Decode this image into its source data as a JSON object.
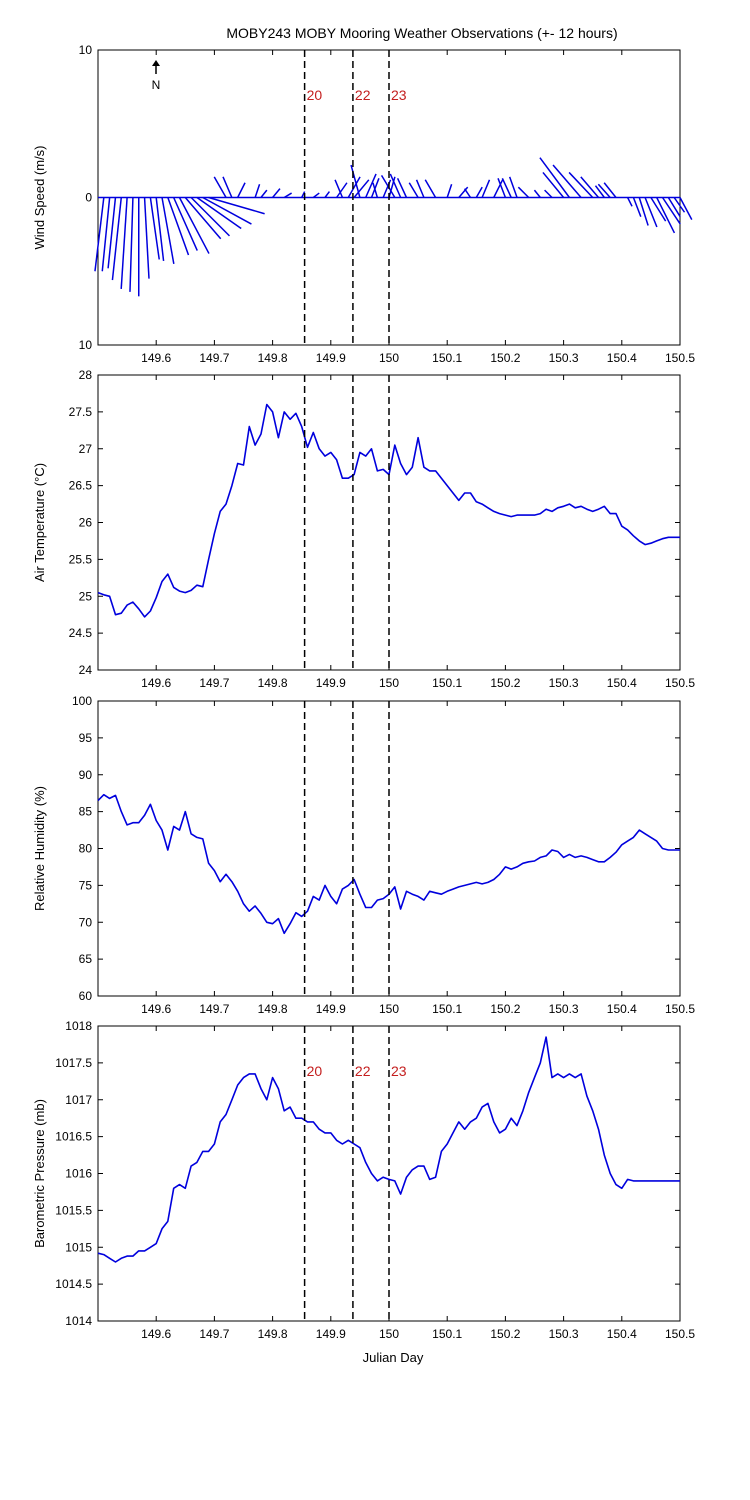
{
  "figure": {
    "title": "MOBY243 MOBY Mooring Weather Observations (+- 12 hours)",
    "north_label": "N",
    "xlabel": "Julian Day",
    "xlim": [
      149.5,
      150.5
    ],
    "xticks": [
      149.6,
      149.7,
      149.8,
      149.9,
      150,
      150.1,
      150.2,
      150.3,
      150.4,
      150.5
    ],
    "xtick_labels": [
      "149.6",
      "149.7",
      "149.8",
      "149.9",
      "150",
      "150.1",
      "150.2",
      "150.3",
      "150.4",
      "150.5"
    ],
    "line_color": "#0000dd",
    "marker_color": "#c41e1e",
    "vertical_markers": [
      {
        "label": "20",
        "x": 149.855
      },
      {
        "label": "22",
        "x": 149.938
      },
      {
        "label": "23",
        "x": 150.0
      }
    ]
  },
  "chart_data": [
    {
      "type": "line",
      "subtype": "wind-vector-stick",
      "ylabel": "Wind Speed (m/s)",
      "ylim": [
        -10,
        10
      ],
      "yticks": [
        -10,
        0,
        10
      ],
      "ytick_labels": [
        "10",
        "0",
        "10"
      ],
      "show_xtick_labels": true,
      "show_markers": true,
      "show_marker_labels": true,
      "series": [
        {
          "x": [
            149.51,
            149.52,
            149.53,
            149.54,
            149.55,
            149.56,
            149.57,
            149.58,
            149.59,
            149.6,
            149.61,
            149.62,
            149.63,
            149.64,
            149.65,
            149.66,
            149.67,
            149.68,
            149.69,
            149.72,
            149.73,
            149.74,
            149.77,
            149.78,
            149.8,
            149.82,
            149.85,
            149.87,
            149.89,
            149.91,
            149.92,
            149.93,
            149.94,
            149.95,
            149.96,
            149.97,
            149.98,
            149.99,
            150.0,
            150.01,
            150.02,
            150.03,
            150.05,
            150.06,
            150.08,
            150.1,
            150.12,
            150.14,
            150.15,
            150.16,
            150.18,
            150.2,
            150.21,
            150.22,
            150.24,
            150.26,
            150.28,
            150.3,
            150.31,
            150.33,
            150.35,
            150.36,
            150.37,
            150.38,
            150.39,
            150.41,
            150.42,
            150.43,
            150.44,
            150.45,
            150.46,
            150.47,
            150.48,
            150.49,
            150.5
          ],
          "u": [
            -0.6,
            -0.5,
            -0.5,
            -0.6,
            -0.4,
            -0.2,
            0.0,
            0.3,
            0.6,
            0.5,
            0.8,
            1.4,
            1.6,
            2.0,
            2.4,
            2.6,
            3.0,
            3.3,
            3.8,
            -0.8,
            -0.6,
            0.5,
            0.3,
            0.4,
            0.5,
            0.5,
            0.2,
            0.4,
            0.3,
            0.7,
            -0.5,
            0.8,
            1.0,
            -0.6,
            0.7,
            0.5,
            -0.3,
            0.5,
            0.4,
            -0.9,
            -0.7,
            -0.6,
            -0.6,
            -0.5,
            -0.7,
            0.3,
            0.6,
            -0.4,
            0.4,
            0.5,
            0.6,
            -0.5,
            -0.6,
            -0.5,
            -0.7,
            -0.4,
            -0.5,
            -1.4,
            -2.0,
            -1.9,
            -1.6,
            -1.2,
            -0.6,
            -0.8,
            -0.8,
            0.3,
            0.5,
            0.6,
            0.8,
            1.0,
            1.2,
            1.2,
            0.8,
            0.7,
            0.8
          ],
          "v": [
            -5.0,
            -5.0,
            -4.8,
            -5.6,
            -6.2,
            -6.4,
            -6.7,
            -5.5,
            -4.2,
            -4.3,
            -4.5,
            -3.9,
            -3.6,
            -3.8,
            -2.8,
            -2.6,
            -2.1,
            -1.8,
            -1.1,
            1.4,
            1.4,
            1.0,
            0.9,
            0.5,
            0.6,
            0.3,
            0.4,
            0.3,
            0.4,
            1.0,
            1.2,
            1.4,
            1.2,
            2.2,
            1.6,
            1.3,
            1.0,
            1.2,
            1.4,
            1.5,
            1.6,
            1.3,
            1.0,
            1.2,
            1.2,
            0.9,
            0.7,
            0.6,
            0.7,
            1.2,
            1.2,
            1.3,
            1.3,
            1.4,
            0.7,
            0.5,
            0.5,
            1.7,
            2.7,
            2.2,
            1.7,
            1.4,
            0.8,
            0.9,
            1.0,
            -0.6,
            -1.3,
            -1.9,
            -2.0,
            -1.6,
            -2.4,
            -1.8,
            -1.3,
            -1.0,
            -1.5
          ]
        }
      ]
    },
    {
      "type": "line",
      "ylabel": "Air Temperature (°C)",
      "ylim": [
        24,
        28
      ],
      "yticks": [
        24,
        24.5,
        25,
        25.5,
        26,
        26.5,
        27,
        27.5,
        28
      ],
      "ytick_labels": [
        "24",
        "24.5",
        "25",
        "25.5",
        "26",
        "26.5",
        "27",
        "27.5",
        "28"
      ],
      "show_xtick_labels": true,
      "show_markers": true,
      "show_marker_labels": false,
      "series": [
        {
          "x": [
            149.5,
            149.51,
            149.52,
            149.53,
            149.54,
            149.55,
            149.56,
            149.57,
            149.58,
            149.59,
            149.6,
            149.61,
            149.62,
            149.63,
            149.64,
            149.65,
            149.66,
            149.67,
            149.68,
            149.69,
            149.7,
            149.71,
            149.72,
            149.73,
            149.74,
            149.75,
            149.76,
            149.77,
            149.78,
            149.79,
            149.8,
            149.81,
            149.82,
            149.83,
            149.84,
            149.85,
            149.86,
            149.87,
            149.88,
            149.89,
            149.9,
            149.91,
            149.92,
            149.93,
            149.94,
            149.95,
            149.96,
            149.97,
            149.98,
            149.99,
            150.0,
            150.01,
            150.02,
            150.03,
            150.04,
            150.05,
            150.06,
            150.07,
            150.08,
            150.09,
            150.1,
            150.11,
            150.12,
            150.13,
            150.14,
            150.15,
            150.16,
            150.17,
            150.18,
            150.19,
            150.2,
            150.21,
            150.22,
            150.23,
            150.24,
            150.25,
            150.26,
            150.27,
            150.28,
            150.29,
            150.3,
            150.31,
            150.32,
            150.33,
            150.34,
            150.35,
            150.36,
            150.37,
            150.38,
            150.39,
            150.4,
            150.41,
            150.42,
            150.43,
            150.44,
            150.45,
            150.46,
            150.47,
            150.48,
            150.49,
            150.5
          ],
          "values": [
            25.05,
            25.02,
            25.0,
            24.75,
            24.77,
            24.88,
            24.92,
            24.83,
            24.72,
            24.8,
            24.98,
            25.2,
            25.3,
            25.12,
            25.07,
            25.05,
            25.08,
            25.15,
            25.13,
            25.5,
            25.85,
            26.15,
            26.25,
            26.5,
            26.8,
            26.78,
            27.3,
            27.05,
            27.2,
            27.6,
            27.5,
            27.15,
            27.5,
            27.4,
            27.48,
            27.3,
            27.02,
            27.22,
            27.0,
            26.9,
            26.95,
            26.85,
            26.6,
            26.6,
            26.65,
            26.95,
            26.9,
            27.0,
            26.7,
            26.72,
            26.65,
            27.05,
            26.8,
            26.65,
            26.75,
            27.15,
            26.75,
            26.7,
            26.7,
            26.6,
            26.5,
            26.4,
            26.3,
            26.4,
            26.4,
            26.28,
            26.25,
            26.2,
            26.15,
            26.12,
            26.1,
            26.08,
            26.1,
            26.1,
            26.1,
            26.1,
            26.12,
            26.18,
            26.15,
            26.2,
            26.22,
            26.25,
            26.2,
            26.22,
            26.18,
            26.15,
            26.18,
            26.22,
            26.12,
            26.12,
            25.95,
            25.9,
            25.82,
            25.75,
            25.7,
            25.72,
            25.75,
            25.78,
            25.8,
            25.8,
            25.8
          ]
        }
      ]
    },
    {
      "type": "line",
      "ylabel": "Relative Humidity (%)",
      "ylim": [
        60,
        100
      ],
      "yticks": [
        60,
        65,
        70,
        75,
        80,
        85,
        90,
        95,
        100
      ],
      "ytick_labels": [
        "60",
        "65",
        "70",
        "75",
        "80",
        "85",
        "90",
        "95",
        "100"
      ],
      "show_xtick_labels": true,
      "show_markers": true,
      "show_marker_labels": false,
      "series": [
        {
          "x": [
            149.5,
            149.51,
            149.52,
            149.53,
            149.54,
            149.55,
            149.56,
            149.57,
            149.58,
            149.59,
            149.6,
            149.61,
            149.62,
            149.63,
            149.64,
            149.65,
            149.66,
            149.67,
            149.68,
            149.69,
            149.7,
            149.71,
            149.72,
            149.73,
            149.74,
            149.75,
            149.76,
            149.77,
            149.78,
            149.79,
            149.8,
            149.81,
            149.82,
            149.83,
            149.84,
            149.85,
            149.86,
            149.87,
            149.88,
            149.89,
            149.9,
            149.91,
            149.92,
            149.93,
            149.94,
            149.95,
            149.96,
            149.97,
            149.98,
            149.99,
            150.0,
            150.01,
            150.02,
            150.03,
            150.04,
            150.05,
            150.06,
            150.07,
            150.08,
            150.09,
            150.1,
            150.11,
            150.12,
            150.13,
            150.14,
            150.15,
            150.16,
            150.17,
            150.18,
            150.19,
            150.2,
            150.21,
            150.22,
            150.23,
            150.24,
            150.25,
            150.26,
            150.27,
            150.28,
            150.29,
            150.3,
            150.31,
            150.32,
            150.33,
            150.34,
            150.35,
            150.36,
            150.37,
            150.38,
            150.39,
            150.4,
            150.41,
            150.42,
            150.43,
            150.44,
            150.45,
            150.46,
            150.47,
            150.48,
            150.49,
            150.5
          ],
          "values": [
            86.5,
            87.3,
            86.8,
            87.2,
            85.0,
            83.2,
            83.5,
            83.5,
            84.5,
            86.0,
            83.8,
            82.5,
            79.8,
            83.0,
            82.5,
            85.0,
            82.0,
            81.5,
            81.3,
            78.0,
            77.0,
            75.5,
            76.5,
            75.5,
            74.2,
            72.5,
            71.5,
            72.2,
            71.2,
            70.0,
            69.8,
            70.5,
            68.5,
            69.8,
            71.3,
            70.8,
            71.5,
            73.5,
            73.0,
            75.0,
            73.5,
            72.5,
            74.5,
            75.0,
            75.8,
            73.8,
            72.0,
            72.0,
            73.0,
            73.2,
            73.8,
            74.8,
            71.8,
            74.2,
            73.8,
            73.5,
            73.0,
            74.2,
            74.0,
            73.8,
            74.2,
            74.5,
            74.8,
            75.0,
            75.2,
            75.4,
            75.2,
            75.4,
            75.8,
            76.5,
            77.5,
            77.2,
            77.5,
            78.0,
            78.2,
            78.3,
            78.8,
            79.0,
            79.8,
            79.6,
            78.8,
            79.2,
            78.8,
            79.0,
            78.8,
            78.5,
            78.2,
            78.2,
            78.8,
            79.5,
            80.5,
            81.0,
            81.5,
            82.5,
            82.0,
            81.5,
            81.0,
            80.0,
            79.8,
            79.8,
            79.8
          ]
        }
      ]
    },
    {
      "type": "line",
      "ylabel": "Barometric Pressure (mb)",
      "ylim": [
        1014,
        1018
      ],
      "yticks": [
        1014,
        1014.5,
        1015,
        1015.5,
        1016,
        1016.5,
        1017,
        1017.5,
        1018
      ],
      "ytick_labels": [
        "1014",
        "1014.5",
        "1015",
        "1015.5",
        "1016",
        "1016.5",
        "1017",
        "1017.5",
        "1018"
      ],
      "show_xtick_labels": true,
      "show_markers": true,
      "show_marker_labels": true,
      "series": [
        {
          "x": [
            149.5,
            149.51,
            149.52,
            149.53,
            149.54,
            149.55,
            149.56,
            149.57,
            149.58,
            149.59,
            149.6,
            149.61,
            149.62,
            149.63,
            149.64,
            149.65,
            149.66,
            149.67,
            149.68,
            149.69,
            149.7,
            149.71,
            149.72,
            149.73,
            149.74,
            149.75,
            149.76,
            149.77,
            149.78,
            149.79,
            149.8,
            149.81,
            149.82,
            149.83,
            149.84,
            149.85,
            149.86,
            149.87,
            149.88,
            149.89,
            149.9,
            149.91,
            149.92,
            149.93,
            149.94,
            149.95,
            149.96,
            149.97,
            149.98,
            149.99,
            150.0,
            150.01,
            150.02,
            150.03,
            150.04,
            150.05,
            150.06,
            150.07,
            150.08,
            150.09,
            150.1,
            150.11,
            150.12,
            150.13,
            150.14,
            150.15,
            150.16,
            150.17,
            150.18,
            150.19,
            150.2,
            150.21,
            150.22,
            150.23,
            150.24,
            150.25,
            150.26,
            150.27,
            150.28,
            150.29,
            150.3,
            150.31,
            150.32,
            150.33,
            150.34,
            150.35,
            150.36,
            150.37,
            150.38,
            150.39,
            150.4,
            150.41,
            150.42,
            150.43,
            150.44,
            150.45,
            150.46,
            150.47,
            150.48,
            150.49,
            150.5
          ],
          "values": [
            1014.92,
            1014.9,
            1014.85,
            1014.8,
            1014.85,
            1014.88,
            1014.88,
            1014.95,
            1014.95,
            1015.0,
            1015.05,
            1015.25,
            1015.35,
            1015.8,
            1015.85,
            1015.8,
            1016.1,
            1016.15,
            1016.3,
            1016.3,
            1016.4,
            1016.7,
            1016.8,
            1017.0,
            1017.2,
            1017.3,
            1017.35,
            1017.35,
            1017.15,
            1017.0,
            1017.3,
            1017.15,
            1016.85,
            1016.9,
            1016.75,
            1016.75,
            1016.7,
            1016.7,
            1016.6,
            1016.55,
            1016.55,
            1016.45,
            1016.4,
            1016.45,
            1016.4,
            1016.35,
            1016.15,
            1016.0,
            1015.9,
            1015.95,
            1015.92,
            1015.9,
            1015.72,
            1015.95,
            1016.05,
            1016.1,
            1016.1,
            1015.92,
            1015.95,
            1016.3,
            1016.4,
            1016.55,
            1016.7,
            1016.6,
            1016.7,
            1016.75,
            1016.9,
            1016.95,
            1016.7,
            1016.55,
            1016.6,
            1016.75,
            1016.65,
            1016.85,
            1017.1,
            1017.3,
            1017.5,
            1017.85,
            1017.3,
            1017.35,
            1017.3,
            1017.35,
            1017.3,
            1017.35,
            1017.05,
            1016.85,
            1016.6,
            1016.25,
            1016.0,
            1015.85,
            1015.8,
            1015.92,
            1015.9,
            1015.9,
            1015.9,
            1015.9,
            1015.9,
            1015.9,
            1015.9,
            1015.9,
            1015.9
          ]
        }
      ]
    }
  ]
}
